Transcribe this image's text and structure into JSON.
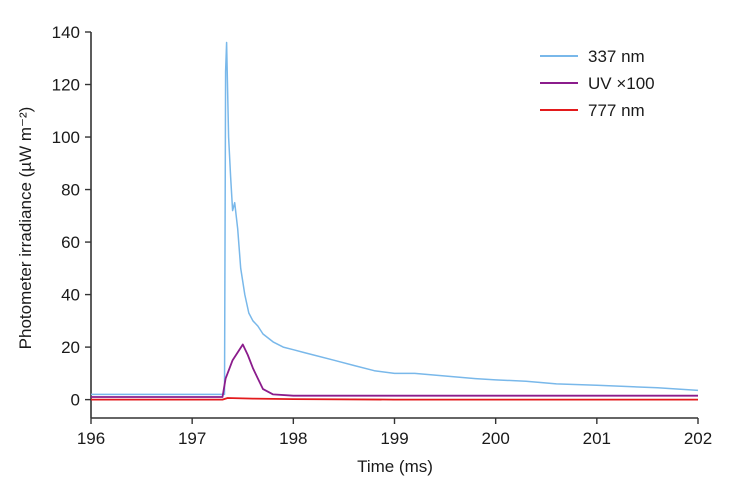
{
  "chart_data": {
    "type": "line",
    "xlabel": "Time (ms)",
    "ylabel": "Photometer irradiance (µW m⁻²)",
    "xlim": [
      196,
      202
    ],
    "ylim": [
      -7,
      140
    ],
    "x_ticks": [
      196,
      197,
      198,
      199,
      200,
      201,
      202
    ],
    "y_ticks": [
      0,
      20,
      40,
      60,
      80,
      100,
      120,
      140
    ],
    "grid": false,
    "legend_position": "top-right",
    "series": [
      {
        "name": "337 nm",
        "color": "#79b8ea",
        "points": [
          [
            196.0,
            2
          ],
          [
            197.0,
            2
          ],
          [
            197.32,
            2
          ],
          [
            197.33,
            125
          ],
          [
            197.34,
            136
          ],
          [
            197.36,
            100
          ],
          [
            197.38,
            85
          ],
          [
            197.4,
            72
          ],
          [
            197.42,
            75
          ],
          [
            197.45,
            65
          ],
          [
            197.48,
            50
          ],
          [
            197.52,
            40
          ],
          [
            197.56,
            33
          ],
          [
            197.6,
            30
          ],
          [
            197.65,
            28
          ],
          [
            197.7,
            25
          ],
          [
            197.8,
            22
          ],
          [
            197.9,
            20
          ],
          [
            198.0,
            19
          ],
          [
            198.1,
            18
          ],
          [
            198.2,
            17
          ],
          [
            198.4,
            15
          ],
          [
            198.6,
            13
          ],
          [
            198.8,
            11
          ],
          [
            199.0,
            10
          ],
          [
            199.2,
            10
          ],
          [
            199.5,
            9
          ],
          [
            199.8,
            8
          ],
          [
            200.0,
            7.5
          ],
          [
            200.3,
            7
          ],
          [
            200.6,
            6
          ],
          [
            201.0,
            5.5
          ],
          [
            201.3,
            5
          ],
          [
            201.6,
            4.5
          ],
          [
            202.0,
            3.5
          ]
        ]
      },
      {
        "name": "UV ×100",
        "color": "#8b1c8c",
        "points": [
          [
            196.0,
            1
          ],
          [
            197.0,
            1
          ],
          [
            197.3,
            1
          ],
          [
            197.33,
            8
          ],
          [
            197.4,
            15
          ],
          [
            197.45,
            18
          ],
          [
            197.5,
            21
          ],
          [
            197.55,
            17
          ],
          [
            197.6,
            12
          ],
          [
            197.65,
            8
          ],
          [
            197.7,
            4
          ],
          [
            197.8,
            2
          ],
          [
            198.0,
            1.5
          ],
          [
            199.0,
            1.5
          ],
          [
            200.0,
            1.5
          ],
          [
            201.0,
            1.5
          ],
          [
            202.0,
            1.5
          ]
        ]
      },
      {
        "name": "777 nm",
        "color": "#e31a1c",
        "points": [
          [
            196.0,
            0
          ],
          [
            197.3,
            0
          ],
          [
            197.35,
            0.6
          ],
          [
            197.6,
            0.4
          ],
          [
            198.0,
            0.2
          ],
          [
            199.0,
            0
          ],
          [
            200.0,
            0
          ],
          [
            201.0,
            0
          ],
          [
            202.0,
            0
          ]
        ]
      }
    ]
  }
}
